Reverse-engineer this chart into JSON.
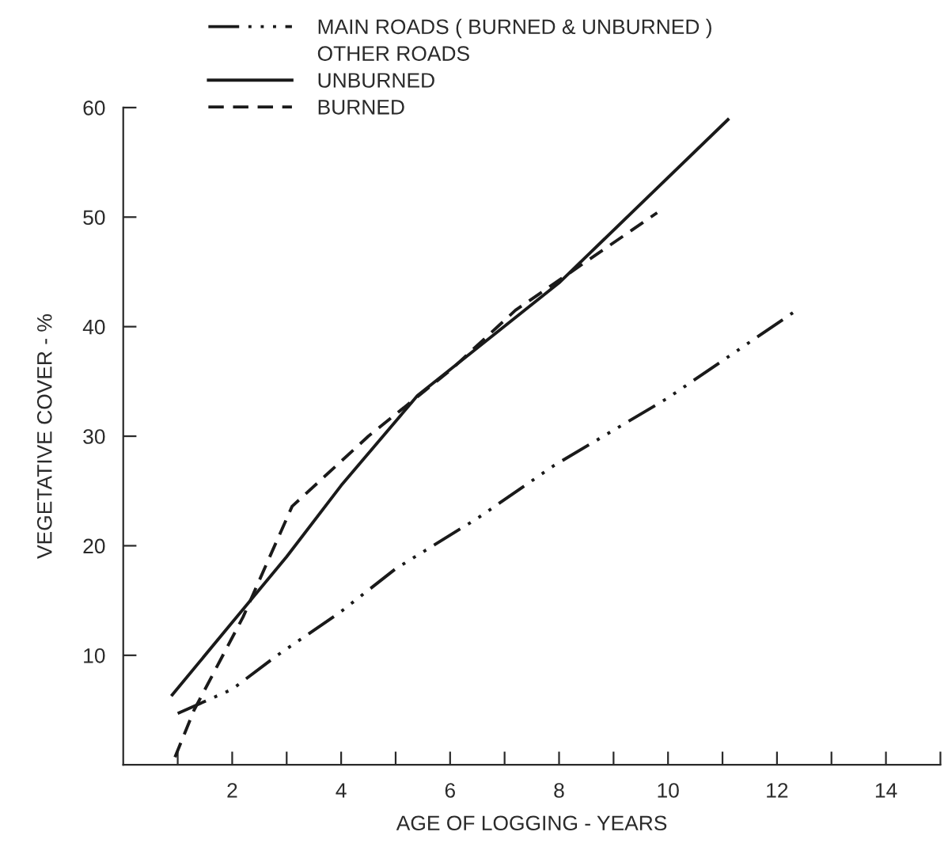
{
  "chart_data": {
    "type": "line",
    "xlabel": "AGE OF LOGGING - YEARS",
    "ylabel": "VEGETATIVE COVER - %",
    "xlim": [
      0,
      15
    ],
    "ylim": [
      0,
      60
    ],
    "xticks": [
      {
        "value": 1,
        "label": null
      },
      2,
      {
        "value": 3,
        "label": null
      },
      4,
      {
        "value": 5,
        "label": null
      },
      6,
      {
        "value": 7,
        "label": null
      },
      8,
      {
        "value": 9,
        "label": null
      },
      10,
      {
        "value": 11,
        "label": null
      },
      12,
      {
        "value": 13,
        "label": null
      },
      14,
      {
        "value": 15,
        "label": null
      }
    ],
    "yticks": [
      10,
      20,
      30,
      40,
      50,
      60
    ],
    "grid": false,
    "legend": "top left",
    "marker": "none",
    "annotations": [
      "OTHER ROADS"
    ],
    "series": [
      {
        "name": "MAIN ROADS ( BURNED & UNBURNED )",
        "color": "#1a1a1a",
        "line_style": "dashdotdot",
        "x": [
          1.0,
          2.0,
          2.8,
          4.0,
          5.0,
          6.5,
          7.9,
          10.0,
          12.3
        ],
        "values": [
          4.7,
          6.9,
          9.9,
          14.0,
          17.9,
          22.5,
          27.3,
          33.5,
          41.3
        ]
      },
      {
        "name": "UNBURNED",
        "color": "#1a1a1a",
        "line_style": "solid",
        "x": [
          0.9,
          2.0,
          3.0,
          4.0,
          5.4,
          8.0,
          11.1
        ],
        "values": [
          6.4,
          13.0,
          19.0,
          25.5,
          33.7,
          44.0,
          58.9
        ]
      },
      {
        "name": "BURNED",
        "color": "#1a1a1a",
        "line_style": "dashed",
        "x": [
          0.95,
          1.3,
          2.2,
          3.1,
          4.5,
          6.0,
          7.2,
          9.8
        ],
        "values": [
          0.7,
          5.0,
          13.5,
          23.6,
          30.0,
          36.0,
          41.5,
          50.4
        ]
      }
    ]
  }
}
